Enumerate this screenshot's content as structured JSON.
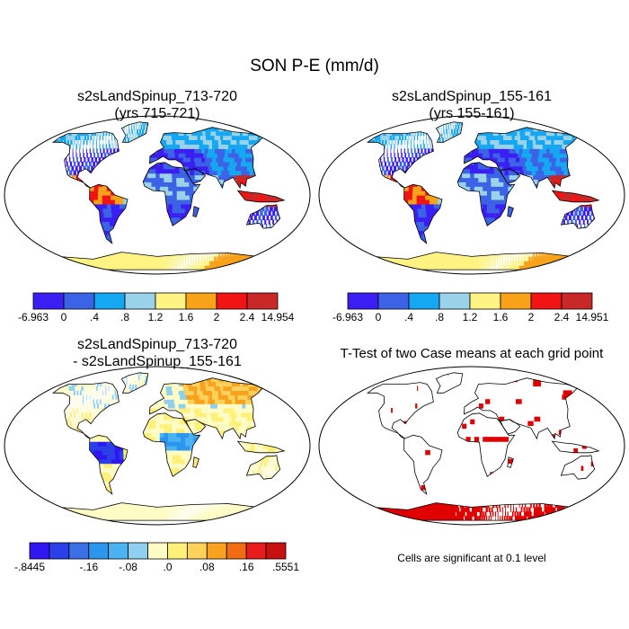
{
  "figure": {
    "title": "SON P-E (mm/d)",
    "note": "Cells are significant at 0.1 level"
  },
  "panels": [
    {
      "title_line1": "s2sLandSpinup_713-720",
      "title_line2": "(yrs 715-721)"
    },
    {
      "title_line1": "s2sLandSpinup_155-161",
      "title_line2": "(yrs 155-161)"
    },
    {
      "title_line1": "s2sLandSpinup_713-720",
      "title_line2": "- s2sLandSpinup_155-161"
    },
    {
      "title_line1": "T-Test of two Case means at each grid point",
      "title_line2": ""
    }
  ],
  "chart_data": [
    {
      "type": "heatmap",
      "title": "s2sLandSpinup_713-720 (yrs 715-721)",
      "variable": "P-E (mm/d)",
      "season": "SON",
      "colorbar": {
        "colors": [
          "#3b1ff2",
          "#3c63e6",
          "#16a7f2",
          "#9ad2ea",
          "#fff384",
          "#f8a21a",
          "#f01414",
          "#c82828"
        ],
        "labels": [
          "-6.963",
          "0",
          ".4",
          ".8",
          "1.2",
          "1.6",
          "2",
          "2.4",
          "14.954"
        ]
      }
    },
    {
      "type": "heatmap",
      "title": "s2sLandSpinup_155-161 (yrs 155-161)",
      "variable": "P-E (mm/d)",
      "season": "SON",
      "colorbar": {
        "colors": [
          "#3b1ff2",
          "#3c63e6",
          "#16a7f2",
          "#9ad2ea",
          "#fff384",
          "#f8a21a",
          "#f01414",
          "#c82828"
        ],
        "labels": [
          "-6.963",
          "0",
          ".4",
          ".8",
          "1.2",
          "1.6",
          "2",
          "2.4",
          "14.951"
        ]
      }
    },
    {
      "type": "heatmap",
      "title": "s2sLandSpinup_713-720 - s2sLandSpinup_155-161",
      "variable": "P-E difference (mm/d)",
      "season": "SON",
      "colorbar": {
        "colors": [
          "#3016f0",
          "#2a3fe8",
          "#3b6fe6",
          "#2c95ee",
          "#4cb3f2",
          "#8fd0f0",
          "#fffcc6",
          "#fff07a",
          "#fcd25a",
          "#f8a21e",
          "#f26c12",
          "#e81c1c",
          "#c81010"
        ],
        "labels": [
          "-.8445",
          "-.16",
          "-.08",
          ".0",
          ".08",
          ".16",
          ".5551"
        ],
        "label_positions": [
          0,
          3,
          5,
          7,
          9,
          11,
          13
        ]
      }
    },
    {
      "type": "heatmap",
      "title": "T-Test of two Case means at each grid point",
      "note": "Cells are significant at 0.1 level",
      "significance_level": 0.1,
      "significant_color": "#e00000"
    }
  ],
  "colors": {
    "land_outline": "#000000",
    "significant": "#e00000"
  }
}
